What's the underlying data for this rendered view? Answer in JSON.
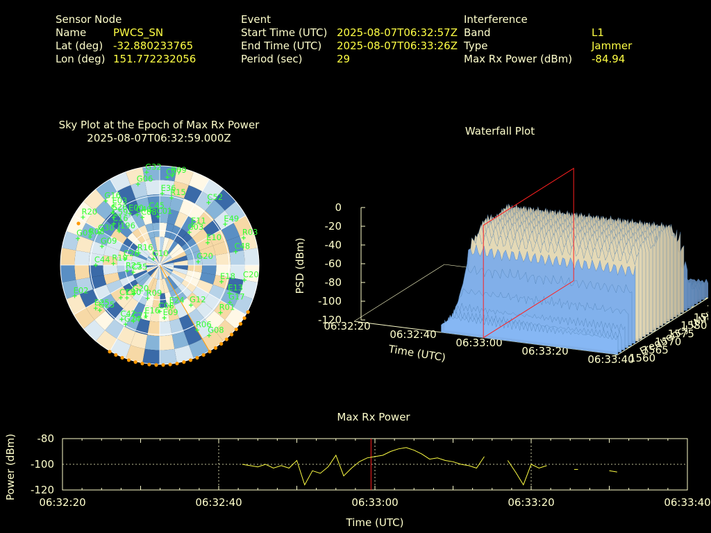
{
  "header": {
    "sensor": {
      "heading": "Sensor Node",
      "rows": [
        {
          "label": "Name",
          "value": "PWCS_SN"
        },
        {
          "label": "Lat (deg)",
          "value": "-32.880233765"
        },
        {
          "label": "Lon (deg)",
          "value": "151.772232056"
        }
      ]
    },
    "event": {
      "heading": "Event",
      "rows": [
        {
          "label": "Start Time (UTC)",
          "value": "2025-08-07T06:32:57Z"
        },
        {
          "label": "End Time (UTC)",
          "value": "2025-08-07T06:33:26Z"
        },
        {
          "label": "Period (sec)",
          "value": "29"
        }
      ]
    },
    "interference": {
      "heading": "Interference",
      "rows": [
        {
          "label": "Band",
          "value": "L1"
        },
        {
          "label": "Type",
          "value": "Jammer"
        },
        {
          "label": "Max Rx Power (dBm)",
          "value": "-84.94"
        }
      ]
    }
  },
  "colors": {
    "label": "#ffffcc",
    "value": "#ffff44",
    "satellite": "#33ff33",
    "jammer_track": "#ff9900",
    "marker": "#ff2020"
  },
  "chart_data": [
    {
      "type": "scatter",
      "title": "Sky Plot at the Epoch of Max Rx Power",
      "subtitle": "2025-08-07T06:32:59.000Z",
      "satellites": [
        {
          "id": "C27",
          "az": 5,
          "el": 10
        },
        {
          "id": "R09",
          "az": 8,
          "el": 8
        },
        {
          "id": "G32",
          "az": 352,
          "el": 5
        },
        {
          "id": "G06",
          "az": 345,
          "el": 14
        },
        {
          "id": "E36",
          "az": 2,
          "el": 25
        },
        {
          "id": "R15",
          "az": 10,
          "el": 28
        },
        {
          "id": "C52",
          "az": 38,
          "el": 18
        },
        {
          "id": "C45",
          "az": 350,
          "el": 40
        },
        {
          "id": "C08",
          "az": 340,
          "el": 44
        },
        {
          "id": "C01",
          "az": 358,
          "el": 46
        },
        {
          "id": "E11",
          "az": 40,
          "el": 44
        },
        {
          "id": "C03",
          "az": 42,
          "el": 50
        },
        {
          "id": "E49",
          "az": 58,
          "el": 20
        },
        {
          "id": "R03",
          "az": 72,
          "el": 10
        },
        {
          "id": "E10",
          "az": 65,
          "el": 42
        },
        {
          "id": "C48",
          "az": 80,
          "el": 20
        },
        {
          "id": "G20",
          "az": 85,
          "el": 55
        },
        {
          "id": "C20",
          "az": 100,
          "el": 12
        },
        {
          "id": "E18",
          "az": 105,
          "el": 32
        },
        {
          "id": "E13",
          "az": 112,
          "el": 22
        },
        {
          "id": "G17",
          "az": 118,
          "el": 18
        },
        {
          "id": "R01",
          "az": 128,
          "el": 20
        },
        {
          "id": "G12",
          "az": 142,
          "el": 44
        },
        {
          "id": "G08",
          "az": 145,
          "el": 12
        },
        {
          "id": "R06",
          "az": 150,
          "el": 22
        },
        {
          "id": "E24",
          "az": 165,
          "el": 52
        },
        {
          "id": "E09",
          "az": 175,
          "el": 42
        },
        {
          "id": "C08",
          "az": 180,
          "el": 48
        },
        {
          "id": "E16",
          "az": 195,
          "el": 42
        },
        {
          "id": "R09",
          "az": 200,
          "el": 58
        },
        {
          "id": "C21",
          "az": 205,
          "el": 34
        },
        {
          "id": "G24",
          "az": 210,
          "el": 28
        },
        {
          "id": "C42",
          "az": 215,
          "el": 30
        },
        {
          "id": "G20",
          "az": 222,
          "el": 55
        },
        {
          "id": "C40",
          "az": 225,
          "el": 48
        },
        {
          "id": "C15",
          "az": 230,
          "el": 44
        },
        {
          "id": "G25",
          "az": 233,
          "el": 22
        },
        {
          "id": "E25",
          "az": 236,
          "el": 20
        },
        {
          "id": "E02",
          "az": 250,
          "el": 8
        },
        {
          "id": "C35",
          "az": 255,
          "el": 65
        },
        {
          "id": "R25",
          "az": 260,
          "el": 60
        },
        {
          "id": "C44",
          "az": 270,
          "el": 32
        },
        {
          "id": "R19",
          "az": 272,
          "el": 48
        },
        {
          "id": "C26",
          "az": 280,
          "el": 58
        },
        {
          "id": "G09",
          "az": 288,
          "el": 35
        },
        {
          "id": "R16",
          "az": 300,
          "el": 68
        },
        {
          "id": "G10",
          "az": 315,
          "el": 82
        },
        {
          "id": "G05",
          "az": 288,
          "el": 12
        },
        {
          "id": "R08",
          "az": 292,
          "el": 22
        },
        {
          "id": "G30",
          "az": 298,
          "el": 28
        },
        {
          "id": "R20",
          "az": 302,
          "el": 8
        },
        {
          "id": "J196",
          "az": 310,
          "el": 42
        },
        {
          "id": "C16",
          "az": 312,
          "el": 34
        },
        {
          "id": "C59",
          "az": 316,
          "el": 30
        },
        {
          "id": "G26",
          "az": 318,
          "el": 26
        },
        {
          "id": "E03",
          "az": 322,
          "el": 22
        },
        {
          "id": "G16",
          "az": 320,
          "el": 14
        },
        {
          "id": "E00",
          "az": 330,
          "el": 36
        },
        {
          "id": "C40",
          "az": 336,
          "el": 40
        }
      ]
    },
    {
      "type": "area",
      "title": "Waterfall Plot",
      "xlabel": "Time (UTC)",
      "ylabel": "Frequency (MHz)",
      "zlabel": "PSD (dBm)",
      "x_ticks": [
        "06:32:20",
        "06:32:40",
        "06:33:00",
        "06:33:20",
        "06:33:40"
      ],
      "y_ticks": [
        "1560",
        "1565",
        "1570",
        "1575",
        "1580",
        "1585",
        "1590",
        "1595"
      ],
      "z_ticks": [
        "0",
        "-20",
        "-40",
        "-60",
        "-80",
        "-100",
        "-120"
      ],
      "marker_time": "06:32:59"
    },
    {
      "type": "line",
      "title": "Max Rx Power",
      "xlabel": "Time (UTC)",
      "ylabel": "Power (dBm)",
      "x_ticks": [
        "06:32:20",
        "06:32:40",
        "06:33:00",
        "06:33:20",
        "06:33:40"
      ],
      "y_ticks": [
        "-80",
        "-100",
        "-120"
      ],
      "xlim": [
        0,
        80
      ],
      "ylim": [
        -120,
        -80
      ],
      "marker_x": 39.5,
      "series": [
        {
          "segments": [
            [
              [
                23,
                -100
              ],
              [
                24,
                -101
              ],
              [
                25,
                -102
              ],
              [
                26,
                -100
              ],
              [
                27,
                -103
              ],
              [
                28,
                -101
              ],
              [
                29,
                -103
              ],
              [
                30,
                -97
              ],
              [
                31,
                -116
              ],
              [
                32,
                -105
              ],
              [
                33,
                -107
              ],
              [
                34,
                -102
              ],
              [
                35,
                -93
              ],
              [
                36,
                -109
              ],
              [
                37,
                -103
              ],
              [
                38,
                -98
              ],
              [
                39,
                -95
              ],
              [
                40,
                -94
              ],
              [
                41,
                -93
              ],
              [
                42,
                -90
              ],
              [
                43,
                -88
              ],
              [
                44,
                -87
              ],
              [
                45,
                -89
              ],
              [
                46,
                -92
              ],
              [
                47,
                -96
              ],
              [
                48,
                -95
              ],
              [
                49,
                -97
              ],
              [
                50,
                -98
              ],
              [
                51,
                -100
              ],
              [
                52,
                -101
              ],
              [
                53,
                -103
              ],
              [
                54,
                -94
              ]
            ],
            [
              [
                57,
                -97
              ],
              [
                58,
                -106
              ],
              [
                59,
                -116
              ],
              [
                60,
                -100
              ],
              [
                61,
                -103
              ],
              [
                62,
                -101
              ]
            ],
            [
              [
                65.5,
                -104
              ],
              [
                66,
                -104
              ]
            ],
            [
              [
                70,
                -105
              ],
              [
                71,
                -106
              ]
            ]
          ]
        }
      ]
    }
  ]
}
